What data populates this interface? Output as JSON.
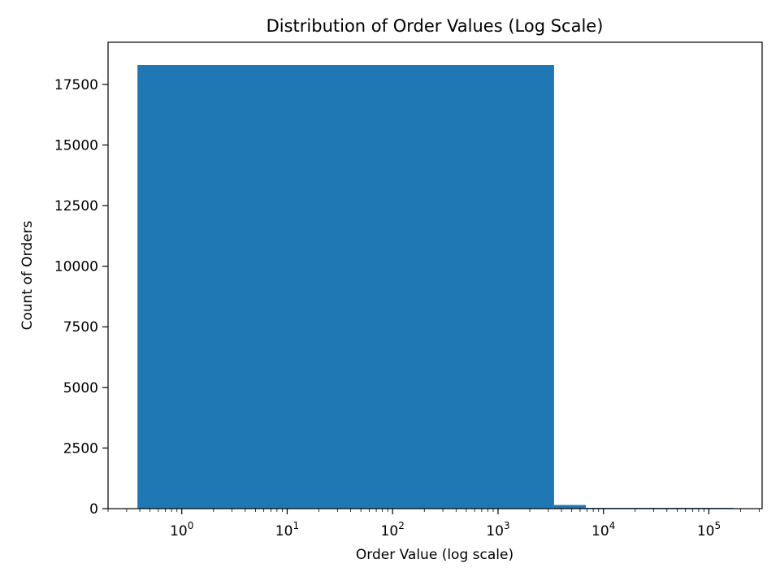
{
  "chart_data": {
    "type": "bar",
    "title": "Distribution of Order Values (Log Scale)",
    "xlabel": "Order Value (log scale)",
    "ylabel": "Count of Orders",
    "x_scale": "log",
    "xlim": [
      0.2,
      320000
    ],
    "ylim": [
      0,
      18300
    ],
    "y_ticks": [
      0,
      2500,
      5000,
      7500,
      10000,
      12500,
      15000,
      17500
    ],
    "x_ticks": [
      {
        "value": 1,
        "base": "10",
        "exp": "0"
      },
      {
        "value": 10,
        "base": "10",
        "exp": "1"
      },
      {
        "value": 100,
        "base": "10",
        "exp": "2"
      },
      {
        "value": 1000,
        "base": "10",
        "exp": "3"
      },
      {
        "value": 10000,
        "base": "10",
        "exp": "4"
      },
      {
        "value": 100000,
        "base": "10",
        "exp": "5"
      }
    ],
    "bins": [
      {
        "x0": 0.38,
        "x1": 3400,
        "count": 18300
      },
      {
        "x0": 3400,
        "x1": 6800,
        "count": 150
      },
      {
        "x0": 6800,
        "x1": 10200,
        "count": 10
      },
      {
        "x0": 10200,
        "x1": 170000,
        "count": 3
      }
    ],
    "bar_color": "#1f77b4",
    "grid": false
  }
}
